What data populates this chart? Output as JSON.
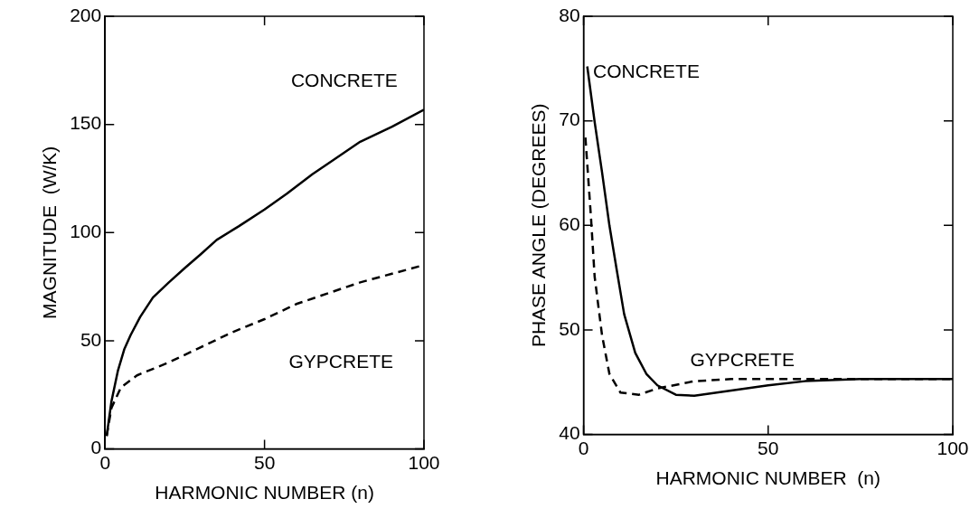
{
  "chart_data": [
    {
      "type": "line",
      "xlabel": "HARMONIC NUMBER (n)",
      "ylabel": "MAGNITUDE  (W/K)",
      "xlim": [
        0,
        100
      ],
      "xticks": [
        0,
        50,
        100
      ],
      "ylim": [
        0,
        200
      ],
      "yticks": [
        0,
        50,
        100,
        150,
        200
      ],
      "grid": false,
      "legend": false,
      "marker": "none",
      "series": [
        {
          "name": "CONCRETE",
          "color": "#000000",
          "line_style": "solid",
          "x": [
            0.5,
            2,
            4,
            6,
            8,
            11,
            15,
            20,
            25,
            30,
            35,
            42,
            50,
            57,
            65,
            72,
            80,
            90,
            100
          ],
          "values": [
            6,
            22,
            36,
            46,
            52.6,
            61,
            70,
            77,
            83.6,
            90,
            96.6,
            103,
            110.7,
            118,
            127,
            134,
            142,
            149,
            156.8
          ]
        },
        {
          "name": "GYPCRETE",
          "color": "#000000",
          "line_style": "dashed",
          "x": [
            0.5,
            2,
            5,
            10,
            20,
            30,
            40,
            50,
            60,
            70,
            80,
            90,
            100
          ],
          "values": [
            6,
            19,
            28.5,
            34,
            40,
            47,
            54,
            60,
            67,
            72,
            77,
            81,
            85
          ]
        }
      ]
    },
    {
      "type": "line",
      "xlabel": "HARMONIC NUMBER  (n)",
      "ylabel": "PHASE ANGLE (DEGREES)",
      "xlim": [
        0,
        100
      ],
      "xticks": [
        0,
        50,
        100
      ],
      "ylim": [
        40,
        80
      ],
      "yticks": [
        40,
        50,
        60,
        70,
        80
      ],
      "grid": false,
      "legend": false,
      "marker": "none",
      "series": [
        {
          "name": "CONCRETE",
          "color": "#000000",
          "line_style": "solid",
          "x": [
            1,
            3,
            5,
            7,
            9,
            11,
            14,
            17,
            20,
            25,
            30,
            40,
            50,
            60,
            75,
            100
          ],
          "values": [
            75.2,
            69.9,
            65.1,
            60,
            55.7,
            51.5,
            47.8,
            45.8,
            44.7,
            43.8,
            43.7,
            44.2,
            44.7,
            45.1,
            45.3,
            45.3
          ]
        },
        {
          "name": "GYPCRETE",
          "color": "#000000",
          "line_style": "dashed",
          "x": [
            0.5,
            2,
            3,
            5,
            7,
            10,
            15,
            20,
            30,
            40,
            100
          ],
          "values": [
            68.4,
            60.8,
            55.1,
            49.5,
            45.8,
            44,
            43.8,
            44.4,
            45.1,
            45.3,
            45.3
          ]
        }
      ]
    }
  ]
}
